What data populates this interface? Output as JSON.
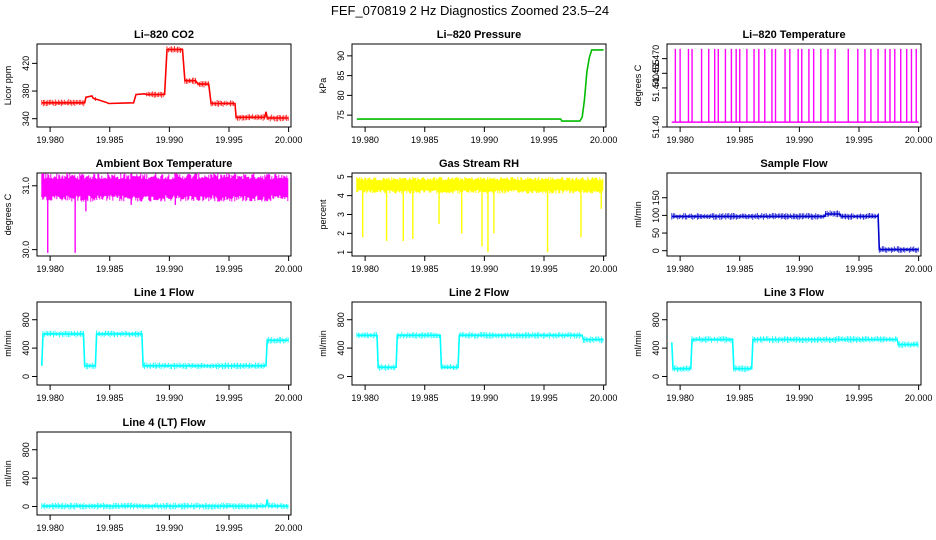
{
  "figure_title": "FEF_070819  2 Hz Diagnostics Zoomed 23.5–24",
  "chart_data": [
    {
      "type": "line",
      "title": "Li–820 CO2",
      "ylabel": "Licor ppm",
      "xlabel": "",
      "color": "#ff0000",
      "xlim": [
        19.9789,
        20.0002
      ],
      "ylim": [
        328,
        448
      ],
      "xticks": [
        "19.980",
        "19.985",
        "19.990",
        "19.995",
        "20.000"
      ],
      "yticks": [
        340,
        380,
        420
      ],
      "series": [
        {
          "x": [
            19.9793,
            19.9829,
            19.983,
            19.9835,
            19.9836,
            19.9838,
            19.9839,
            19.9848,
            19.9849,
            19.987,
            19.9872,
            19.9879,
            19.9881,
            19.9896,
            19.9898,
            19.9911,
            19.9913,
            19.9922,
            19.9924,
            19.9933,
            19.9935,
            19.9955,
            19.9956,
            19.998,
            19.9981,
            19.9982,
            20.0
          ],
          "y": [
            363,
            363,
            371,
            373,
            370,
            368,
            368,
            363,
            362,
            363,
            375,
            376,
            375,
            375,
            440,
            440,
            395,
            395,
            390,
            390,
            362,
            362,
            342,
            342,
            350,
            341,
            341
          ]
        }
      ]
    },
    {
      "type": "line",
      "title": "Li–820 Pressure",
      "ylabel": "kPa",
      "xlabel": "",
      "color": "#00bb00",
      "xlim": [
        19.9789,
        20.0002
      ],
      "ylim": [
        72,
        93
      ],
      "xticks": [
        "19.980",
        "19.985",
        "19.990",
        "19.995",
        "20.000"
      ],
      "yticks": [
        75,
        80,
        85,
        90
      ],
      "series": [
        {
          "x": [
            19.9793,
            19.9964,
            19.9965,
            19.998,
            19.9982,
            19.9984,
            19.9986,
            19.9988,
            19.999,
            20.0
          ],
          "y": [
            74,
            74,
            73.5,
            73.5,
            74.5,
            79,
            86,
            89.5,
            91.5,
            91.5
          ]
        }
      ]
    },
    {
      "type": "line",
      "title": "Li–820 Temperature",
      "ylabel": "degrees C",
      "xlabel": "",
      "color": "#ff00ff",
      "xlim": [
        19.9789,
        20.0002
      ],
      "ylim": [
        51.4,
        51.485
      ],
      "xticks": [
        "19.980",
        "19.985",
        "19.990",
        "19.995",
        "20.000"
      ],
      "yticks": [
        "51.40",
        "51.440",
        "51.455",
        "51.470"
      ],
      "series": [
        {
          "low": 51.405,
          "high": 51.48,
          "spike_x": [
            19.9796,
            19.98,
            19.9807,
            19.981,
            19.9818,
            19.9824,
            19.9829,
            19.9832,
            19.9838,
            19.9843,
            19.9847,
            19.985,
            19.9856,
            19.9862,
            19.9866,
            19.9871,
            19.9877,
            19.988,
            19.9888,
            19.9892,
            19.9899,
            19.9902,
            19.9908,
            19.9912,
            19.9918,
            19.9924,
            19.993,
            19.9941,
            19.9949,
            19.9955,
            19.996,
            19.9966,
            19.9972,
            19.9976,
            19.998,
            19.9985,
            19.999,
            19.9994,
            19.9998
          ]
        }
      ]
    },
    {
      "type": "line",
      "title": "Ambient Box Temperature",
      "ylabel": "degrees C",
      "xlabel": "",
      "color": "#ff00ff",
      "xlim": [
        19.9789,
        20.0002
      ],
      "ylim": [
        29.9,
        31.2
      ],
      "xticks": [
        "19.980",
        "19.985",
        "19.990",
        "19.995",
        "20.000"
      ],
      "yticks": [
        "30.0",
        "31.0"
      ],
      "series": [
        {
          "band_low": 30.85,
          "band_high": 31.1,
          "center": 30.97,
          "dips": [
            [
              19.9798,
              29.95
            ],
            [
              19.9821,
              29.95
            ],
            [
              19.983,
              30.6
            ],
            [
              19.9868,
              30.7
            ],
            [
              19.9905,
              30.7
            ]
          ]
        }
      ]
    },
    {
      "type": "line",
      "title": "Gas Stream RH",
      "ylabel": "percent",
      "xlabel": "",
      "color": "#ffff00",
      "xlim": [
        19.9789,
        20.0002
      ],
      "ylim": [
        0.8,
        5.2
      ],
      "xticks": [
        "19.980",
        "19.985",
        "19.990",
        "19.995",
        "20.000"
      ],
      "yticks": [
        1,
        2,
        3,
        4,
        5
      ],
      "series": [
        {
          "band_low": 4.3,
          "band_high": 4.8,
          "dips": [
            [
              19.9798,
              1.8
            ],
            [
              19.9818,
              1.6
            ],
            [
              19.9832,
              1.6
            ],
            [
              19.984,
              1.7
            ],
            [
              19.9862,
              2.5
            ],
            [
              19.9881,
              2.0
            ],
            [
              19.9898,
              1.3
            ],
            [
              19.9903,
              1.0
            ],
            [
              19.9908,
              2.0
            ],
            [
              19.9953,
              1.0
            ],
            [
              19.9981,
              1.8
            ],
            [
              19.9998,
              3.3
            ]
          ]
        }
      ]
    },
    {
      "type": "line",
      "title": "Sample Flow",
      "ylabel": "ml/min",
      "xlabel": "",
      "color": "#0000cc",
      "xlim": [
        19.9789,
        20.0002
      ],
      "ylim": [
        -15,
        220
      ],
      "xticks": [
        "19.980",
        "19.985",
        "19.990",
        "19.995",
        "20.000"
      ],
      "yticks": [
        0,
        50,
        100,
        150
      ],
      "series": [
        {
          "x": [
            19.9793,
            19.9921,
            19.9922,
            19.9934,
            19.9935,
            19.9965,
            19.9966,
            19.9967,
            20.0
          ],
          "y": [
            97,
            97,
            104,
            104,
            97,
            97,
            101,
            3,
            3
          ]
        }
      ]
    },
    {
      "type": "line",
      "title": "Line 1 Flow",
      "ylabel": "ml/min",
      "xlabel": "",
      "color": "#00ffff",
      "xlim": [
        19.9789,
        20.0002
      ],
      "ylim": [
        -120,
        1050
      ],
      "xticks": [
        "19.980",
        "19.985",
        "19.990",
        "19.995",
        "20.000"
      ],
      "yticks": [
        0,
        400,
        800
      ],
      "series": [
        {
          "x": [
            19.9793,
            19.9794,
            19.9828,
            19.9829,
            19.9838,
            19.9839,
            19.9877,
            19.9878,
            19.9981,
            19.9982,
            20.0
          ],
          "y": [
            150,
            600,
            600,
            150,
            150,
            600,
            600,
            150,
            150,
            510,
            510
          ]
        }
      ]
    },
    {
      "type": "line",
      "title": "Line 2 Flow",
      "ylabel": "ml/min",
      "xlabel": "",
      "color": "#00ffff",
      "xlim": [
        19.9789,
        20.0002
      ],
      "ylim": [
        -120,
        1050
      ],
      "xticks": [
        "19.980",
        "19.985",
        "19.990",
        "19.995",
        "20.000"
      ],
      "yticks": [
        0,
        400,
        800
      ],
      "series": [
        {
          "x": [
            19.9793,
            19.981,
            19.9811,
            19.9826,
            19.9827,
            19.9863,
            19.9864,
            19.9878,
            19.9879,
            19.9982,
            19.9983,
            20.0
          ],
          "y": [
            580,
            580,
            130,
            130,
            580,
            580,
            130,
            130,
            580,
            580,
            520,
            520
          ]
        }
      ]
    },
    {
      "type": "line",
      "title": "Line 3 Flow",
      "ylabel": "ml/min",
      "xlabel": "",
      "color": "#00ffff",
      "xlim": [
        19.9789,
        20.0002
      ],
      "ylim": [
        -120,
        1050
      ],
      "xticks": [
        "19.980",
        "19.985",
        "19.990",
        "19.995",
        "20.000"
      ],
      "yticks": [
        0,
        400,
        800
      ],
      "series": [
        {
          "x": [
            19.9793,
            19.9794,
            19.9809,
            19.981,
            19.9844,
            19.9845,
            19.986,
            19.9861,
            19.9982,
            19.9983,
            20.0
          ],
          "y": [
            480,
            110,
            110,
            520,
            520,
            110,
            110,
            520,
            520,
            450,
            450
          ]
        }
      ]
    },
    {
      "type": "line",
      "title": "Line 4 (LT) Flow",
      "ylabel": "ml/min",
      "xlabel": "",
      "color": "#00ffff",
      "xlim": [
        19.9789,
        20.0002
      ],
      "ylim": [
        -120,
        1050
      ],
      "xticks": [
        "19.980",
        "19.985",
        "19.990",
        "19.995",
        "20.000"
      ],
      "yticks": [
        0,
        400,
        800
      ],
      "series": [
        {
          "x": [
            19.9793,
            19.9981,
            19.9982,
            19.9983,
            20.0
          ],
          "y": [
            5,
            5,
            100,
            5,
            5
          ]
        }
      ]
    }
  ]
}
